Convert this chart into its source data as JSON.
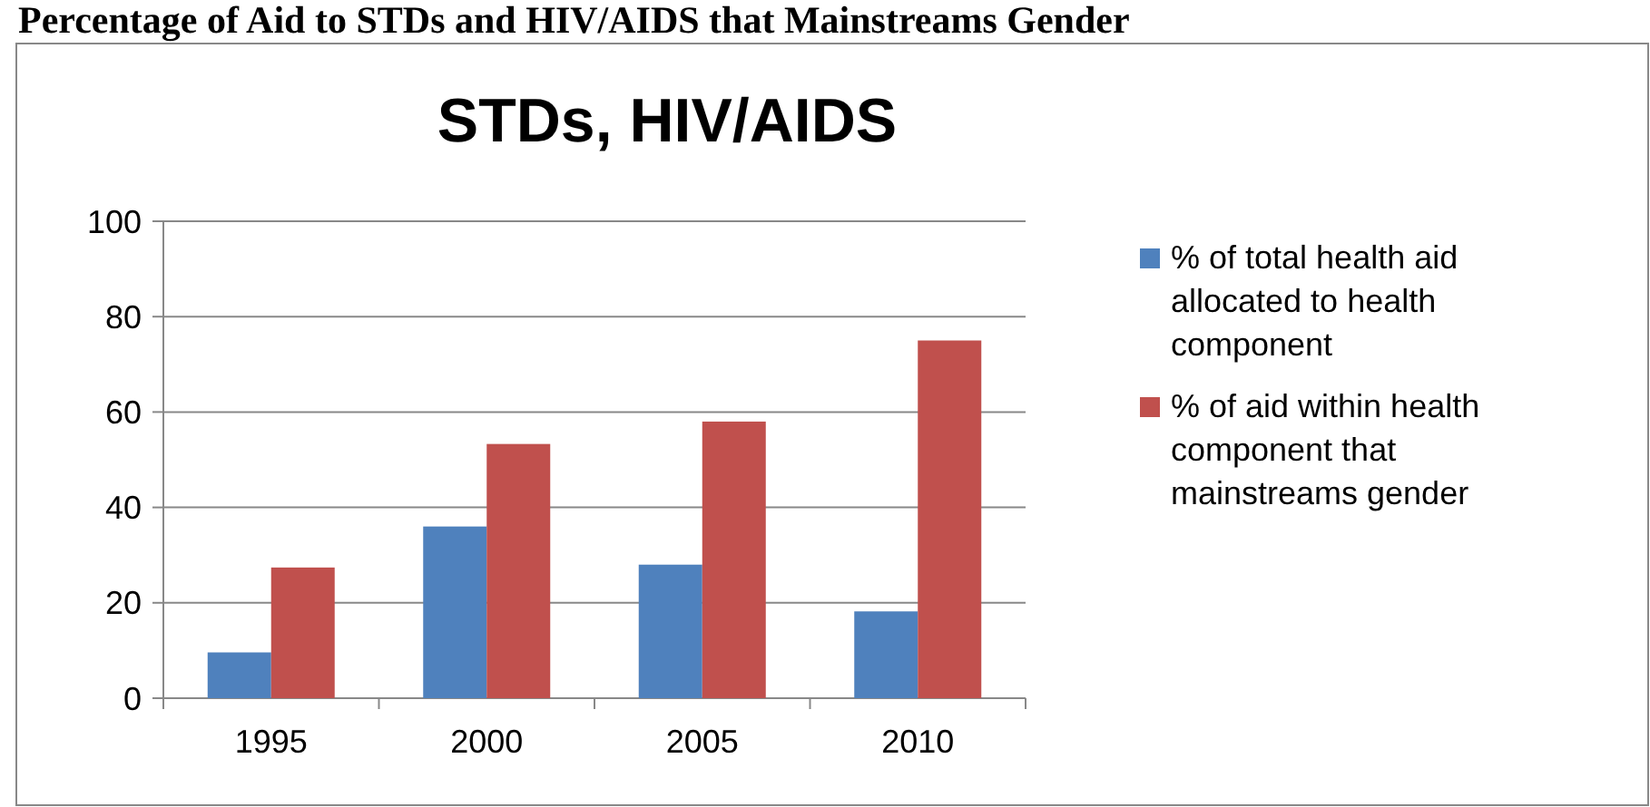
{
  "chart_data": {
    "type": "bar",
    "title": "Percentage of Aid to STDs and HIV/AIDS that Mainstreams Gender",
    "subtitle": "STDs, HIV/AIDS",
    "categories": [
      "1995",
      "2000",
      "2005",
      "2010"
    ],
    "series": [
      {
        "name": "% of total health aid allocated to health component",
        "color": "#4f81bd",
        "values": [
          9.6,
          36,
          28,
          18.2
        ]
      },
      {
        "name": "% of aid within health component that mainstreams gender",
        "color": "#c0504d",
        "values": [
          27.4,
          53.3,
          58,
          75
        ]
      }
    ],
    "ylim": [
      0,
      100
    ],
    "yticks": [
      0,
      20,
      40,
      60,
      80,
      100
    ],
    "grid": "y",
    "legend": "right"
  }
}
